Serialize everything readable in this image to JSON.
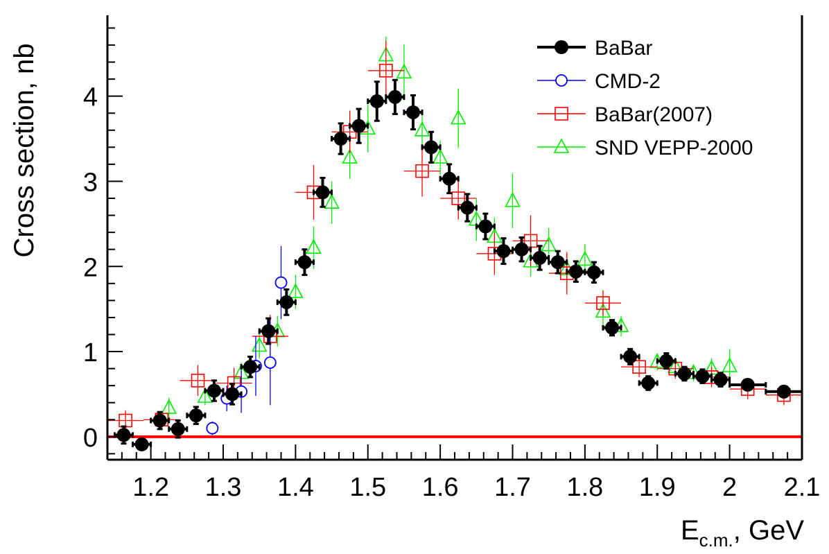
{
  "chart_data": {
    "type": "scatter",
    "xlabel_main": "E",
    "xlabel_sub": "c.m.",
    "xlabel_unit": ", GeV",
    "ylabel": "Cross section, nb",
    "xlim": [
      1.14,
      2.1
    ],
    "ylim": [
      -0.27,
      4.95
    ],
    "x_ticks": [
      {
        "value": 1.2,
        "label": "1.2"
      },
      {
        "value": 1.3,
        "label": "1.3"
      },
      {
        "value": 1.4,
        "label": "1.4"
      },
      {
        "value": 1.5,
        "label": "1.5"
      },
      {
        "value": 1.6,
        "label": "1.6"
      },
      {
        "value": 1.7,
        "label": "1.7"
      },
      {
        "value": 1.8,
        "label": "1.8"
      },
      {
        "value": 1.9,
        "label": "1.9"
      },
      {
        "value": 2.0,
        "label": "2"
      },
      {
        "value": 2.1,
        "label": "2.1"
      }
    ],
    "y_ticks": [
      {
        "value": 0,
        "label": "0"
      },
      {
        "value": 1,
        "label": "1"
      },
      {
        "value": 2,
        "label": "2"
      },
      {
        "value": 3,
        "label": "3"
      },
      {
        "value": 4,
        "label": "4"
      }
    ],
    "zero_line": {
      "value": 0,
      "color": "#ff0000"
    },
    "legend_position": "top-right",
    "series": [
      {
        "name": "BaBar",
        "color": "#000000",
        "marker": "filled-circle",
        "points": [
          {
            "x": 1.1625,
            "y": 0.02,
            "xerr": 0.0125,
            "yerr": 0.1
          },
          {
            "x": 1.1875,
            "y": -0.09,
            "xerr": 0.0125,
            "yerr": 0.06
          },
          {
            "x": 1.2125,
            "y": 0.19,
            "xerr": 0.0125,
            "yerr": 0.1
          },
          {
            "x": 1.2375,
            "y": 0.09,
            "xerr": 0.0125,
            "yerr": 0.1
          },
          {
            "x": 1.2625,
            "y": 0.25,
            "xerr": 0.0125,
            "yerr": 0.1
          },
          {
            "x": 1.2875,
            "y": 0.54,
            "xerr": 0.0125,
            "yerr": 0.12
          },
          {
            "x": 1.3125,
            "y": 0.5,
            "xerr": 0.0125,
            "yerr": 0.12
          },
          {
            "x": 1.3375,
            "y": 0.82,
            "xerr": 0.0125,
            "yerr": 0.12
          },
          {
            "x": 1.3625,
            "y": 1.24,
            "xerr": 0.0125,
            "yerr": 0.15
          },
          {
            "x": 1.3875,
            "y": 1.58,
            "xerr": 0.0125,
            "yerr": 0.15
          },
          {
            "x": 1.4125,
            "y": 2.05,
            "xerr": 0.0125,
            "yerr": 0.15
          },
          {
            "x": 1.4375,
            "y": 2.87,
            "xerr": 0.0125,
            "yerr": 0.17
          },
          {
            "x": 1.4625,
            "y": 3.5,
            "xerr": 0.0125,
            "yerr": 0.18
          },
          {
            "x": 1.4875,
            "y": 3.65,
            "xerr": 0.0125,
            "yerr": 0.2
          },
          {
            "x": 1.5125,
            "y": 3.94,
            "xerr": 0.0125,
            "yerr": 0.23
          },
          {
            "x": 1.5375,
            "y": 3.99,
            "xerr": 0.0125,
            "yerr": 0.2
          },
          {
            "x": 1.5625,
            "y": 3.81,
            "xerr": 0.0125,
            "yerr": 0.2
          },
          {
            "x": 1.5875,
            "y": 3.4,
            "xerr": 0.0125,
            "yerr": 0.18
          },
          {
            "x": 1.6125,
            "y": 3.03,
            "xerr": 0.0125,
            "yerr": 0.17
          },
          {
            "x": 1.6375,
            "y": 2.69,
            "xerr": 0.0125,
            "yerr": 0.16
          },
          {
            "x": 1.6625,
            "y": 2.47,
            "xerr": 0.0125,
            "yerr": 0.15
          },
          {
            "x": 1.6875,
            "y": 2.18,
            "xerr": 0.0125,
            "yerr": 0.15
          },
          {
            "x": 1.7125,
            "y": 2.2,
            "xerr": 0.0125,
            "yerr": 0.14
          },
          {
            "x": 1.7375,
            "y": 2.1,
            "xerr": 0.0125,
            "yerr": 0.14
          },
          {
            "x": 1.7625,
            "y": 2.05,
            "xerr": 0.0125,
            "yerr": 0.13
          },
          {
            "x": 1.7875,
            "y": 1.94,
            "xerr": 0.0125,
            "yerr": 0.12
          },
          {
            "x": 1.8125,
            "y": 1.93,
            "xerr": 0.0125,
            "yerr": 0.12
          },
          {
            "x": 1.8375,
            "y": 1.28,
            "xerr": 0.0125,
            "yerr": 0.09
          },
          {
            "x": 1.8625,
            "y": 0.94,
            "xerr": 0.0125,
            "yerr": 0.09
          },
          {
            "x": 1.8875,
            "y": 0.63,
            "xerr": 0.0125,
            "yerr": 0.08
          },
          {
            "x": 1.9125,
            "y": 0.89,
            "xerr": 0.0125,
            "yerr": 0.09
          },
          {
            "x": 1.9375,
            "y": 0.74,
            "xerr": 0.0125,
            "yerr": 0.08
          },
          {
            "x": 1.9625,
            "y": 0.71,
            "xerr": 0.0125,
            "yerr": 0.08
          },
          {
            "x": 1.9875,
            "y": 0.67,
            "xerr": 0.0125,
            "yerr": 0.08
          },
          {
            "x": 2.025,
            "y": 0.61,
            "xerr": 0.025,
            "yerr": 0.05
          },
          {
            "x": 2.075,
            "y": 0.53,
            "xerr": 0.025,
            "yerr": 0.05
          }
        ]
      },
      {
        "name": "CMD-2",
        "color": "#0000ff",
        "marker": "open-circle",
        "points": [
          {
            "x": 1.285,
            "y": 0.1,
            "xerr": 0,
            "yerr": 0.08
          },
          {
            "x": 1.305,
            "y": 0.45,
            "xerr": 0,
            "yerr": 0.15
          },
          {
            "x": 1.325,
            "y": 0.53,
            "xerr": 0,
            "yerr": 0.25
          },
          {
            "x": 1.345,
            "y": 0.83,
            "xerr": 0,
            "yerr": 0.35
          },
          {
            "x": 1.365,
            "y": 0.87,
            "xerr": 0,
            "yerr": 0.5
          },
          {
            "x": 1.38,
            "y": 1.81,
            "xerr": 0,
            "yerr": 0.43
          }
        ]
      },
      {
        "name": "BaBar(2007)",
        "color": "#ff0000",
        "marker": "open-square",
        "points": [
          {
            "x": 1.165,
            "y": 0.19,
            "xerr": 0.025,
            "yerr": 0.12
          },
          {
            "x": 1.215,
            "y": 0.2,
            "xerr": 0.025,
            "yerr": 0.1
          },
          {
            "x": 1.265,
            "y": 0.66,
            "xerr": 0.025,
            "yerr": 0.18
          },
          {
            "x": 1.315,
            "y": 0.63,
            "xerr": 0.025,
            "yerr": 0.18
          },
          {
            "x": 1.365,
            "y": 1.18,
            "xerr": 0.025,
            "yerr": 0.25
          },
          {
            "x": 1.425,
            "y": 2.87,
            "xerr": 0.025,
            "yerr": 0.32
          },
          {
            "x": 1.475,
            "y": 3.58,
            "xerr": 0.025,
            "yerr": 0.25
          },
          {
            "x": 1.525,
            "y": 4.3,
            "xerr": 0.025,
            "yerr": 0.35
          },
          {
            "x": 1.575,
            "y": 3.12,
            "xerr": 0.025,
            "yerr": 0.3
          },
          {
            "x": 1.625,
            "y": 2.8,
            "xerr": 0.025,
            "yerr": 0.25
          },
          {
            "x": 1.675,
            "y": 2.15,
            "xerr": 0.025,
            "yerr": 0.25
          },
          {
            "x": 1.725,
            "y": 2.3,
            "xerr": 0.025,
            "yerr": 0.3
          },
          {
            "x": 1.775,
            "y": 1.92,
            "xerr": 0.025,
            "yerr": 0.25
          },
          {
            "x": 1.825,
            "y": 1.57,
            "xerr": 0.025,
            "yerr": 0.15
          },
          {
            "x": 1.875,
            "y": 0.82,
            "xerr": 0.025,
            "yerr": 0.12
          },
          {
            "x": 1.925,
            "y": 0.8,
            "xerr": 0.025,
            "yerr": 0.12
          },
          {
            "x": 1.975,
            "y": 0.7,
            "xerr": 0.025,
            "yerr": 0.12
          },
          {
            "x": 2.025,
            "y": 0.56,
            "xerr": 0.025,
            "yerr": 0.12
          },
          {
            "x": 2.075,
            "y": 0.49,
            "xerr": 0.025,
            "yerr": 0.12
          }
        ]
      },
      {
        "name": "SND VEPP-2000",
        "color": "#00ee00",
        "marker": "open-triangle",
        "points": [
          {
            "x": 1.225,
            "y": 0.34,
            "xerr": 0,
            "yerr": 0.12
          },
          {
            "x": 1.275,
            "y": 0.47,
            "xerr": 0,
            "yerr": 0.1
          },
          {
            "x": 1.325,
            "y": 0.75,
            "xerr": 0,
            "yerr": 0.12
          },
          {
            "x": 1.35,
            "y": 1.07,
            "xerr": 0,
            "yerr": 0.15
          },
          {
            "x": 1.375,
            "y": 1.24,
            "xerr": 0,
            "yerr": 0.18
          },
          {
            "x": 1.4,
            "y": 1.7,
            "xerr": 0,
            "yerr": 0.2
          },
          {
            "x": 1.425,
            "y": 2.22,
            "xerr": 0,
            "yerr": 0.25
          },
          {
            "x": 1.45,
            "y": 2.75,
            "xerr": 0,
            "yerr": 0.25
          },
          {
            "x": 1.475,
            "y": 3.28,
            "xerr": 0,
            "yerr": 0.25
          },
          {
            "x": 1.5,
            "y": 3.62,
            "xerr": 0,
            "yerr": 0.28
          },
          {
            "x": 1.525,
            "y": 4.48,
            "xerr": 0,
            "yerr": 0.22
          },
          {
            "x": 1.55,
            "y": 4.28,
            "xerr": 0,
            "yerr": 0.33
          },
          {
            "x": 1.575,
            "y": 3.6,
            "xerr": 0,
            "yerr": 0.22
          },
          {
            "x": 1.6,
            "y": 3.28,
            "xerr": 0,
            "yerr": 0.2
          },
          {
            "x": 1.625,
            "y": 3.74,
            "xerr": 0,
            "yerr": 0.35
          },
          {
            "x": 1.65,
            "y": 2.55,
            "xerr": 0,
            "yerr": 0.25
          },
          {
            "x": 1.675,
            "y": 2.35,
            "xerr": 0,
            "yerr": 0.22
          },
          {
            "x": 1.7,
            "y": 2.77,
            "xerr": 0,
            "yerr": 0.32
          },
          {
            "x": 1.725,
            "y": 2.06,
            "xerr": 0,
            "yerr": 0.18
          },
          {
            "x": 1.75,
            "y": 2.25,
            "xerr": 0,
            "yerr": 0.2
          },
          {
            "x": 1.775,
            "y": 1.97,
            "xerr": 0,
            "yerr": 0.18
          },
          {
            "x": 1.8,
            "y": 2.08,
            "xerr": 0,
            "yerr": 0.18
          },
          {
            "x": 1.825,
            "y": 1.47,
            "xerr": 0,
            "yerr": 0.15
          },
          {
            "x": 1.85,
            "y": 1.3,
            "xerr": 0,
            "yerr": 0.12
          },
          {
            "x": 1.9,
            "y": 0.88,
            "xerr": 0,
            "yerr": 0.1
          },
          {
            "x": 1.925,
            "y": 0.82,
            "xerr": 0,
            "yerr": 0.1
          },
          {
            "x": 1.95,
            "y": 0.75,
            "xerr": 0,
            "yerr": 0.1
          },
          {
            "x": 1.975,
            "y": 0.8,
            "xerr": 0,
            "yerr": 0.12
          },
          {
            "x": 2.0,
            "y": 0.83,
            "xerr": 0,
            "yerr": 0.2
          }
        ]
      }
    ]
  }
}
